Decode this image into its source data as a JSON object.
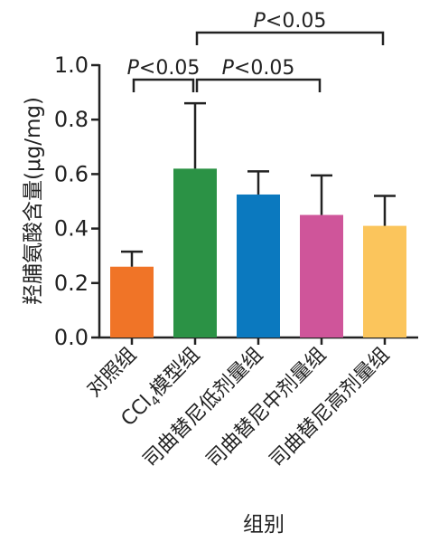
{
  "chart_data": {
    "type": "bar",
    "title": "",
    "ylabel": "羟脯氨酸含量(μg/mg)",
    "xlabel": "组别",
    "ylim": [
      0,
      1.0
    ],
    "yticks": [
      "0.0",
      "0.2",
      "0.4",
      "0.6",
      "0.8",
      "1.0"
    ],
    "categories": [
      "对照组",
      "CCl4模型组",
      "司曲替尼低剂量组",
      "司曲替尼中剂量组",
      "司曲替尼高剂量组"
    ],
    "values": [
      0.26,
      0.62,
      0.525,
      0.45,
      0.41
    ],
    "errors": [
      0.055,
      0.24,
      0.085,
      0.145,
      0.11
    ],
    "colors": [
      "#f07427",
      "#2b9245",
      "#0b79bf",
      "#cf559a",
      "#fbc55c"
    ],
    "grid": false,
    "significance": [
      {
        "from": 0,
        "to": 1,
        "label": "P<0.05"
      },
      {
        "from": 1,
        "to": 3,
        "label": "P<0.05"
      },
      {
        "from": 1,
        "to": 4,
        "label": "P<0.05"
      }
    ]
  }
}
